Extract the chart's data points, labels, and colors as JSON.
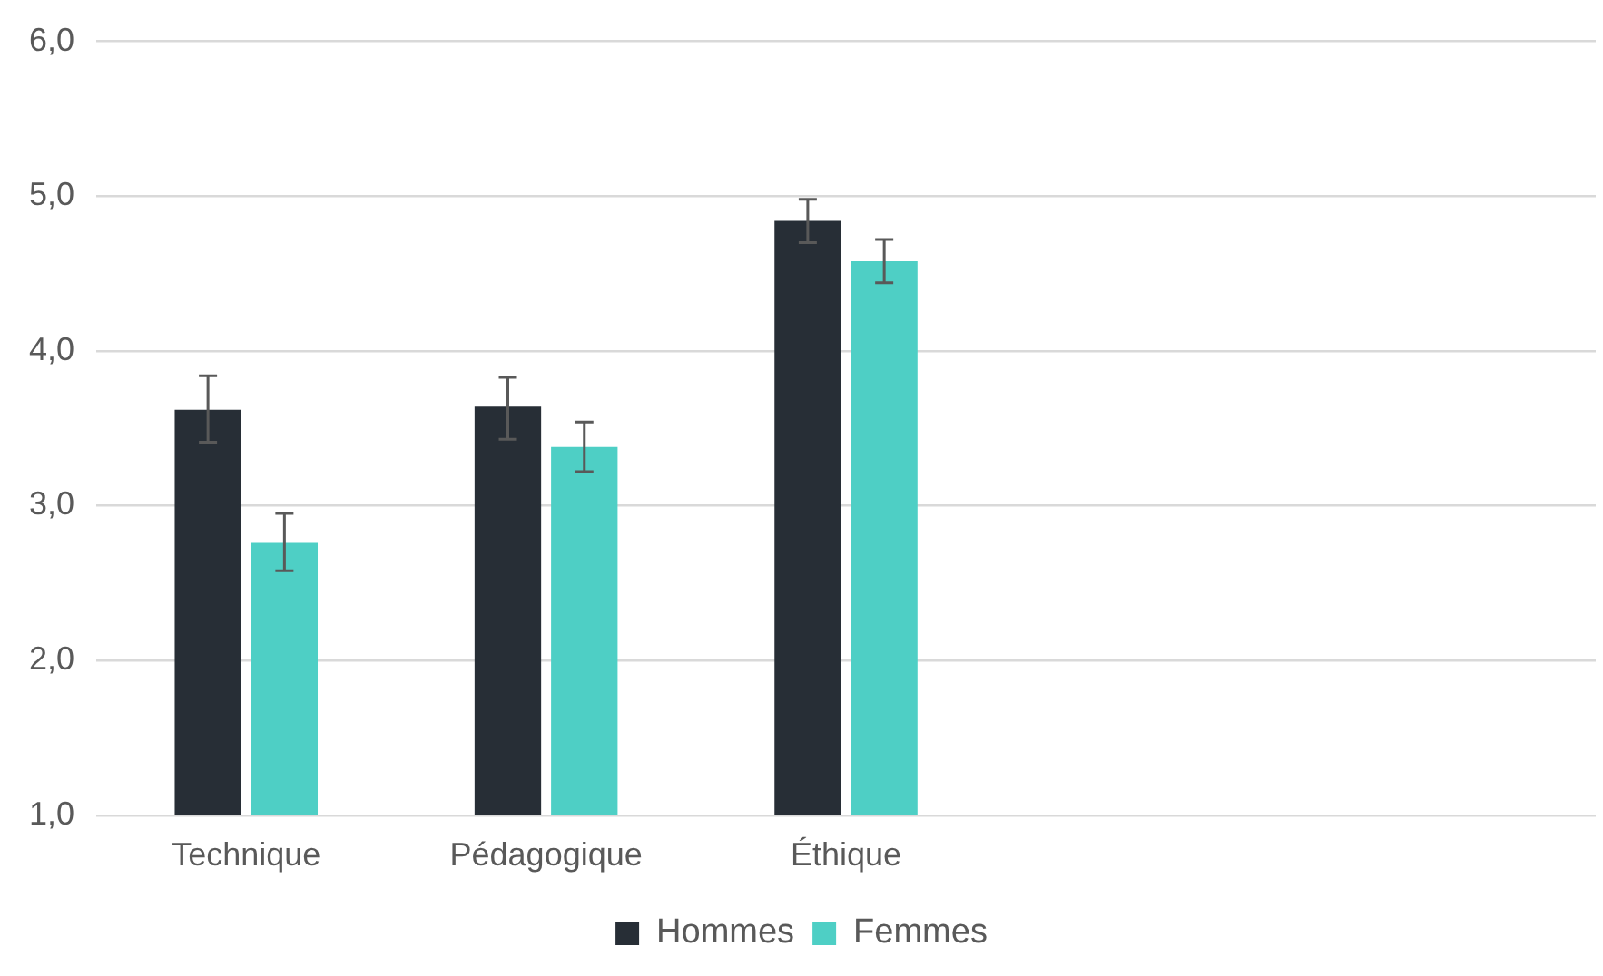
{
  "chart_data": {
    "type": "bar",
    "categories": [
      "Technique",
      "Pédagogique",
      "Éthique",
      null,
      null
    ],
    "series": [
      {
        "name": "Hommes",
        "color": "#272e36",
        "values": [
          3.62,
          3.64,
          4.84,
          null,
          null
        ],
        "errors": [
          [
            3.41,
            3.84
          ],
          [
            3.43,
            3.83
          ],
          [
            4.7,
            4.98
          ],
          null,
          null
        ]
      },
      {
        "name": "Femmes",
        "color": "#4ecfc5",
        "values": [
          2.76,
          3.38,
          4.58,
          null,
          null
        ],
        "errors": [
          [
            2.58,
            2.95
          ],
          [
            3.22,
            3.54
          ],
          [
            4.44,
            4.72
          ],
          null,
          null
        ]
      }
    ],
    "ylim": [
      1,
      6
    ],
    "yticks": [
      {
        "value": 1,
        "label": "1,0"
      },
      {
        "value": 2,
        "label": "2,0"
      },
      {
        "value": 3,
        "label": "3,0"
      },
      {
        "value": 4,
        "label": "4,0"
      },
      {
        "value": 5,
        "label": "5,0"
      },
      {
        "value": 6,
        "label": "6,0"
      }
    ],
    "grid": "y",
    "legend": "bottom"
  }
}
